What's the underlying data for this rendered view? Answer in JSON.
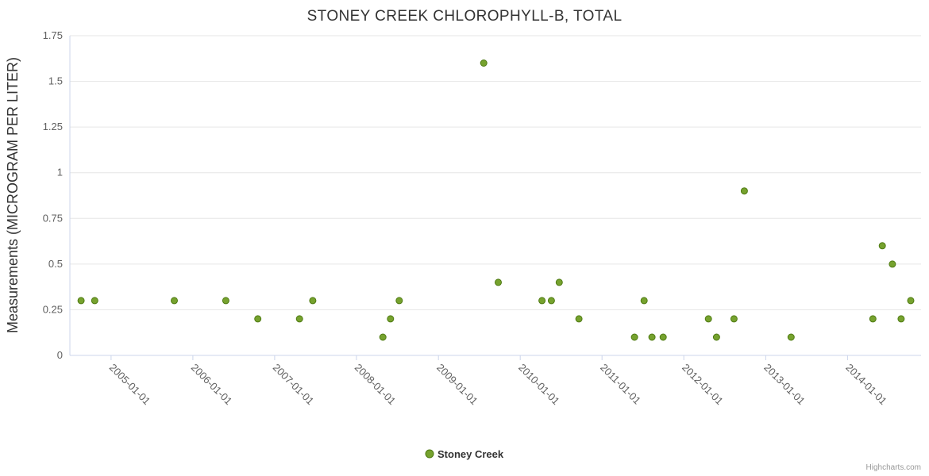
{
  "chart_data": {
    "type": "scatter",
    "title": "STONEY CREEK CHLOROPHYLL-B, TOTAL",
    "ylabel": "Measurements (MICROGRAM PER LITER)",
    "ylim": [
      0,
      1.75
    ],
    "yticks": [
      0,
      0.25,
      0.5,
      0.75,
      1,
      1.25,
      1.5,
      1.75
    ],
    "ytick_labels": [
      "0",
      "0.25",
      "0.5",
      "0.75",
      "1",
      "1.25",
      "1.5",
      "1.75"
    ],
    "xlim": [
      "2004-07-01",
      "2014-11-25"
    ],
    "xticks": [
      "2005-01-01",
      "2006-01-01",
      "2007-01-01",
      "2008-01-01",
      "2009-01-01",
      "2010-01-01",
      "2011-01-01",
      "2012-01-01",
      "2013-01-01",
      "2014-01-01"
    ],
    "grid": true,
    "legend_position": "bottom-center",
    "credits": "Highcharts.com",
    "colors": {
      "grid": "#e6e6e6",
      "axis_line": "#ccd6eb",
      "title_text": "#333333",
      "label_text": "#606060",
      "background": "#ffffff"
    },
    "series": [
      {
        "name": "Stoney Creek",
        "color": "#76a22e",
        "marker_stroke": "#4e7a12",
        "points": [
          {
            "date": "2004-08-20",
            "value": 0.3
          },
          {
            "date": "2004-10-20",
            "value": 0.3
          },
          {
            "date": "2005-10-10",
            "value": 0.3
          },
          {
            "date": "2006-05-28",
            "value": 0.3
          },
          {
            "date": "2006-10-18",
            "value": 0.2
          },
          {
            "date": "2007-04-22",
            "value": 0.2
          },
          {
            "date": "2007-06-20",
            "value": 0.3
          },
          {
            "date": "2008-04-28",
            "value": 0.1
          },
          {
            "date": "2008-06-01",
            "value": 0.2
          },
          {
            "date": "2008-07-10",
            "value": 0.3
          },
          {
            "date": "2009-07-22",
            "value": 1.6
          },
          {
            "date": "2009-09-25",
            "value": 0.4
          },
          {
            "date": "2010-04-08",
            "value": 0.3
          },
          {
            "date": "2010-05-20",
            "value": 0.3
          },
          {
            "date": "2010-06-24",
            "value": 0.4
          },
          {
            "date": "2010-09-20",
            "value": 0.2
          },
          {
            "date": "2011-05-26",
            "value": 0.1
          },
          {
            "date": "2011-07-08",
            "value": 0.3
          },
          {
            "date": "2011-08-12",
            "value": 0.1
          },
          {
            "date": "2011-10-01",
            "value": 0.1
          },
          {
            "date": "2012-04-20",
            "value": 0.2
          },
          {
            "date": "2012-05-26",
            "value": 0.1
          },
          {
            "date": "2012-08-12",
            "value": 0.2
          },
          {
            "date": "2012-09-27",
            "value": 0.9
          },
          {
            "date": "2013-04-24",
            "value": 0.1
          },
          {
            "date": "2014-04-24",
            "value": 0.2
          },
          {
            "date": "2014-06-05",
            "value": 0.6
          },
          {
            "date": "2014-07-20",
            "value": 0.5
          },
          {
            "date": "2014-08-28",
            "value": 0.2
          },
          {
            "date": "2014-10-10",
            "value": 0.3
          }
        ]
      }
    ]
  }
}
